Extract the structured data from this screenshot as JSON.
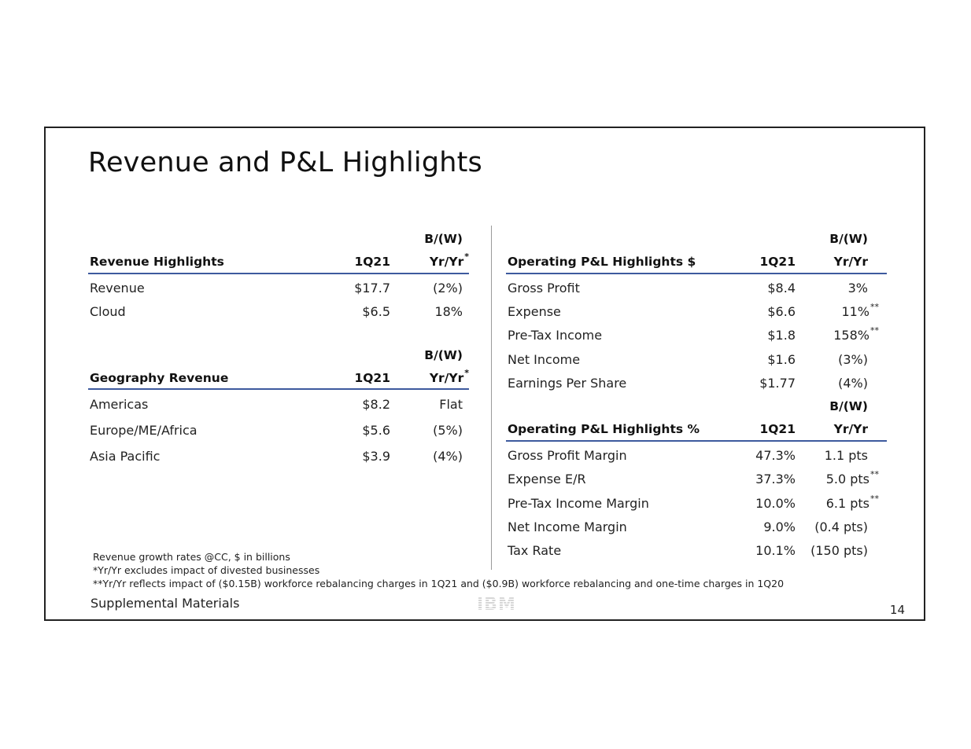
{
  "title": "Revenue and P&L Highlights",
  "revenue_table": {
    "col_name": "Revenue Highlights",
    "col_period": "1Q21",
    "col_change_top": "B/(W)",
    "col_change": "Yr/Yr",
    "col_change_mark": "*",
    "rows": [
      {
        "label": "Revenue",
        "value": "$17.7",
        "change": "(2%)"
      },
      {
        "label": "Cloud",
        "value": "$6.5",
        "change": "18%"
      }
    ]
  },
  "geo_table": {
    "col_name": "Geography Revenue",
    "col_period": "1Q21",
    "col_change_top": "B/(W)",
    "col_change": "Yr/Yr",
    "col_change_mark": "*",
    "rows": [
      {
        "label": "Americas",
        "value": "$8.2",
        "change": "Flat"
      },
      {
        "label": "Europe/ME/Africa",
        "value": "$5.6",
        "change": "(5%)"
      },
      {
        "label": "Asia Pacific",
        "value": "$3.9",
        "change": "(4%)"
      }
    ]
  },
  "pl_dollar_table": {
    "col_name": "Operating P&L Highlights $",
    "col_period": "1Q21",
    "col_change_top": "B/(W)",
    "col_change": "Yr/Yr",
    "rows": [
      {
        "label": "Gross Profit",
        "value": "$8.4",
        "change": "3%",
        "mark": ""
      },
      {
        "label": "Expense",
        "value": "$6.6",
        "change": "11%",
        "mark": "**"
      },
      {
        "label": "Pre-Tax Income",
        "value": "$1.8",
        "change": "158%",
        "mark": "**"
      },
      {
        "label": "Net Income",
        "value": "$1.6",
        "change": "(3%)",
        "mark": ""
      },
      {
        "label": "Earnings Per Share",
        "value": "$1.77",
        "change": "(4%)",
        "mark": ""
      }
    ]
  },
  "pl_pct_table": {
    "col_name": "Operating P&L Highlights %",
    "col_period": "1Q21",
    "col_change_top": "B/(W)",
    "col_change": "Yr/Yr",
    "rows": [
      {
        "label": "Gross Profit Margin",
        "value": "47.3%",
        "change": "1.1 pts",
        "mark": ""
      },
      {
        "label": "Expense E/R",
        "value": "37.3%",
        "change": "5.0 pts",
        "mark": "**"
      },
      {
        "label": "Pre-Tax Income Margin",
        "value": "10.0%",
        "change": "6.1 pts",
        "mark": "**"
      },
      {
        "label": "Net Income Margin",
        "value": "9.0%",
        "change": "(0.4 pts)",
        "mark": ""
      },
      {
        "label": "Tax Rate",
        "value": "10.1%",
        "change": "(150 pts)",
        "mark": ""
      }
    ]
  },
  "footnotes": [
    "Revenue growth rates @CC, $ in billions",
    "*Yr/Yr excludes impact of divested businesses",
    "**Yr/Yr reflects impact of ($0.15B) workforce rebalancing charges in 1Q21 and ($0.9B) workforce rebalancing and one-time charges in 1Q20"
  ],
  "footer": {
    "label": "Supplemental Materials",
    "logo": "IBM",
    "page_number": "14"
  }
}
